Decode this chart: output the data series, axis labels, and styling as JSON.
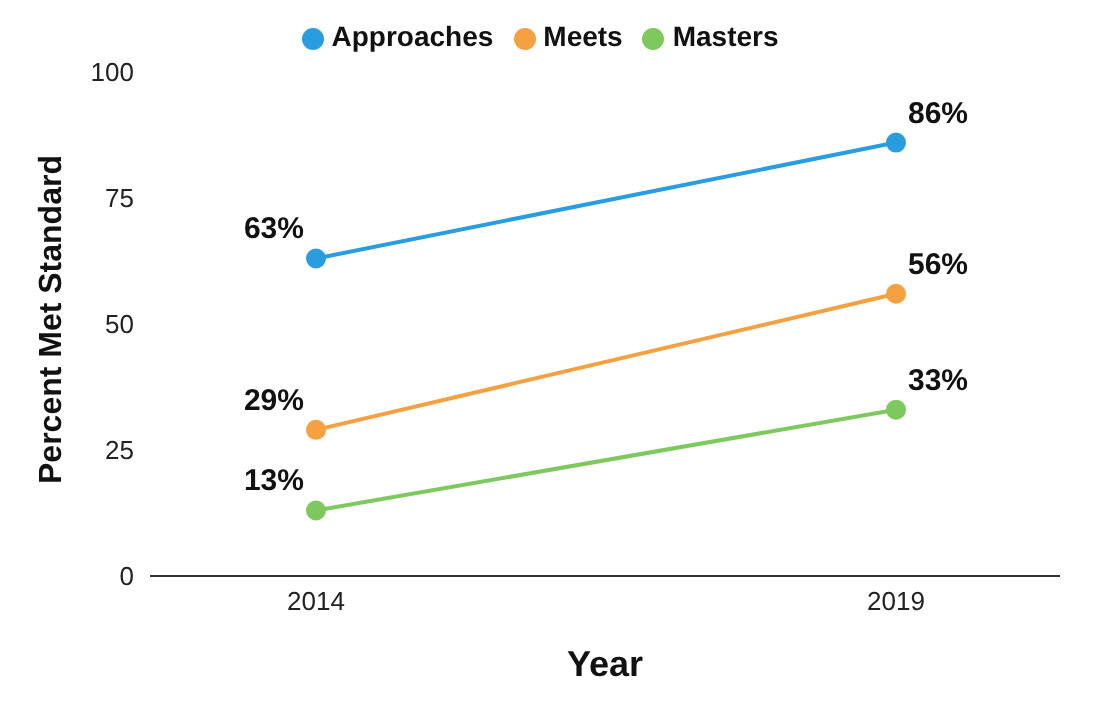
{
  "chart_data": {
    "type": "line",
    "xlabel": "Year",
    "ylabel": "Percent Met Standard",
    "categories": [
      "2014",
      "2019"
    ],
    "series": [
      {
        "name": "Approaches",
        "color": "#2a9de0",
        "values": [
          63,
          86
        ],
        "value_labels": [
          "63%",
          "86%"
        ]
      },
      {
        "name": "Meets",
        "color": "#f5a142",
        "values": [
          29,
          56
        ],
        "value_labels": [
          "29%",
          "56%"
        ]
      },
      {
        "name": "Masters",
        "color": "#7dc95e",
        "values": [
          13,
          33
        ],
        "value_labels": [
          "13%",
          "33%"
        ]
      }
    ],
    "ylim": [
      0,
      100
    ],
    "yticks": [
      0,
      25,
      50,
      75,
      100
    ],
    "grid": false,
    "legend": "top",
    "marker": "circle",
    "line_style": "solid"
  }
}
